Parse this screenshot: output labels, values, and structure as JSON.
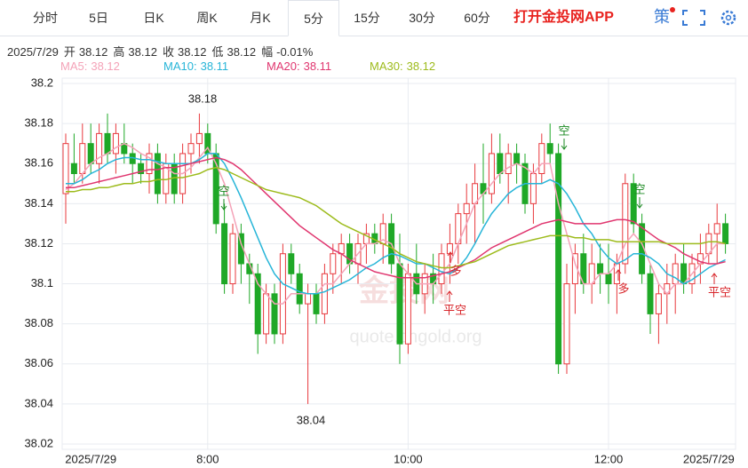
{
  "tabs": [
    "分时",
    "5日",
    "日K",
    "周K",
    "月K",
    "5分",
    "15分",
    "30分",
    "60分"
  ],
  "app_link": "打开金投网APP",
  "toolbar_icon": "策",
  "info": {
    "date": "2025/7/29",
    "items": [
      {
        "label": "开",
        "value": "38.12"
      },
      {
        "label": "高",
        "value": "38.12"
      },
      {
        "label": "收",
        "value": "38.12"
      },
      {
        "label": "低",
        "value": "38.12"
      },
      {
        "label": "幅",
        "value": "-0.01%"
      }
    ]
  },
  "watermark": [
    "金投网",
    "quote.cngold.org"
  ],
  "chart_data": {
    "type": "candlestick",
    "categories": [
      null,
      null,
      null,
      "2025/7/29",
      null,
      null,
      null,
      null,
      null,
      null,
      null,
      null,
      null,
      null,
      null,
      null,
      null,
      "8:00",
      null,
      null,
      null,
      null,
      null,
      null,
      null,
      null,
      null,
      null,
      null,
      null,
      null,
      null,
      null,
      null,
      null,
      null,
      null,
      null,
      null,
      null,
      null,
      "10:00",
      null,
      null,
      null,
      null,
      null,
      null,
      null,
      null,
      null,
      null,
      null,
      null,
      null,
      null,
      null,
      null,
      null,
      null,
      null,
      null,
      null,
      null,
      null,
      "12:00",
      null,
      null,
      null,
      null,
      null,
      null,
      null,
      null,
      null,
      null,
      null,
      "2025/7/29",
      null,
      null
    ],
    "open": [
      38.145,
      38.16,
      38.155,
      38.17,
      38.16,
      38.175,
      38.165,
      38.17,
      38.165,
      38.16,
      38.155,
      38.165,
      38.145,
      38.16,
      38.145,
      38.165,
      38.17,
      38.175,
      38.165,
      38.13,
      38.1,
      38.125,
      38.11,
      38.105,
      38.075,
      38.095,
      38.075,
      38.115,
      38.105,
      38.09,
      38.095,
      38.085,
      38.105,
      38.115,
      38.12,
      38.11,
      38.12,
      38.125,
      38.12,
      38.13,
      38.11,
      38.07,
      38.105,
      38.095,
      38.105,
      38.1,
      38.115,
      38.12,
      38.135,
      38.14,
      38.15,
      38.145,
      38.165,
      38.155,
      38.165,
      38.16,
      38.14,
      38.155,
      38.17,
      38.165,
      38.06,
      38.1,
      38.115,
      38.1,
      38.11,
      38.105,
      38.1,
      38.11,
      38.15,
      38.13,
      38.105,
      38.085,
      38.095,
      38.1,
      38.11,
      38.1,
      38.11,
      38.115,
      38.125,
      38.13
    ],
    "high": [
      38.175,
      38.175,
      38.18,
      38.18,
      38.18,
      38.185,
      38.18,
      38.18,
      38.17,
      38.165,
      38.17,
      38.17,
      38.165,
      38.165,
      38.17,
      38.175,
      38.185,
      38.18,
      38.17,
      38.14,
      38.13,
      38.13,
      38.115,
      38.11,
      38.1,
      38.1,
      38.12,
      38.12,
      38.11,
      38.1,
      38.1,
      38.11,
      38.12,
      38.125,
      38.125,
      38.125,
      38.13,
      38.13,
      38.135,
      38.135,
      38.125,
      38.11,
      38.12,
      38.11,
      38.115,
      38.12,
      38.13,
      38.14,
      38.15,
      38.16,
      38.17,
      38.175,
      38.175,
      38.17,
      38.17,
      38.165,
      38.16,
      38.175,
      38.18,
      38.17,
      38.11,
      38.12,
      38.125,
      38.12,
      38.12,
      38.12,
      38.115,
      38.155,
      38.155,
      38.135,
      38.11,
      38.1,
      38.11,
      38.115,
      38.12,
      38.115,
      38.125,
      38.13,
      38.14,
      38.135
    ],
    "low": [
      38.13,
      38.15,
      38.15,
      38.155,
      38.15,
      38.16,
      38.155,
      38.16,
      38.15,
      38.15,
      38.145,
      38.14,
      38.14,
      38.14,
      38.14,
      38.155,
      38.16,
      38.16,
      38.125,
      38.095,
      38.095,
      38.1,
      38.09,
      38.065,
      38.07,
      38.07,
      38.07,
      38.1,
      38.085,
      38.04,
      38.08,
      38.08,
      38.095,
      38.1,
      38.105,
      38.1,
      38.11,
      38.115,
      38.11,
      38.105,
      38.06,
      38.065,
      38.09,
      38.085,
      38.09,
      38.095,
      38.1,
      38.11,
      38.12,
      38.12,
      38.13,
      38.14,
      38.15,
      38.14,
      38.15,
      38.135,
      38.13,
      38.15,
      38.16,
      38.055,
      38.055,
      38.085,
      38.095,
      38.09,
      38.095,
      38.09,
      38.085,
      38.105,
      38.125,
      38.1,
      38.075,
      38.07,
      38.08,
      38.085,
      38.095,
      38.095,
      38.1,
      38.11,
      38.11,
      38.115
    ],
    "close": [
      38.17,
      38.155,
      38.17,
      38.16,
      38.175,
      38.165,
      38.175,
      38.165,
      38.16,
      38.155,
      38.165,
      38.145,
      38.16,
      38.145,
      38.165,
      38.17,
      38.175,
      38.165,
      38.13,
      38.1,
      38.125,
      38.11,
      38.105,
      38.075,
      38.095,
      38.075,
      38.115,
      38.105,
      38.09,
      38.095,
      38.085,
      38.105,
      38.115,
      38.12,
      38.11,
      38.12,
      38.125,
      38.12,
      38.13,
      38.11,
      38.07,
      38.105,
      38.095,
      38.105,
      38.1,
      38.115,
      38.12,
      38.135,
      38.14,
      38.15,
      38.145,
      38.165,
      38.155,
      38.165,
      38.16,
      38.14,
      38.155,
      38.17,
      38.165,
      38.06,
      38.1,
      38.115,
      38.1,
      38.11,
      38.105,
      38.1,
      38.11,
      38.15,
      38.13,
      38.105,
      38.085,
      38.095,
      38.1,
      38.11,
      38.1,
      38.11,
      38.115,
      38.125,
      38.13,
      38.12
    ],
    "up_color": "#e8383d",
    "down_color": "#1fa827",
    "series": [
      {
        "name": "MA5",
        "legend_value": "38.12",
        "color": "#f4a3b8",
        "values": [
          38.147,
          38.15,
          38.155,
          38.16,
          38.163,
          38.165,
          38.168,
          38.17,
          38.168,
          38.165,
          38.163,
          38.16,
          38.158,
          38.155,
          38.155,
          38.158,
          38.163,
          38.168,
          38.16,
          38.15,
          38.135,
          38.12,
          38.11,
          38.1,
          38.095,
          38.09,
          38.09,
          38.095,
          38.095,
          38.095,
          38.095,
          38.1,
          38.1,
          38.105,
          38.11,
          38.115,
          38.12,
          38.12,
          38.122,
          38.12,
          38.11,
          38.105,
          38.1,
          38.1,
          38.1,
          38.105,
          38.11,
          38.12,
          38.13,
          38.14,
          38.145,
          38.15,
          38.155,
          38.158,
          38.16,
          38.158,
          38.155,
          38.16,
          38.16,
          38.14,
          38.125,
          38.11,
          38.1,
          38.1,
          38.105,
          38.105,
          38.11,
          38.12,
          38.125,
          38.12,
          38.11,
          38.1,
          38.095,
          38.1,
          38.1,
          38.105,
          38.11,
          38.115,
          38.12,
          38.12
        ]
      },
      {
        "name": "MA10",
        "legend_value": "38.11",
        "color": "#27b5d8",
        "values": [
          38.15,
          38.15,
          38.152,
          38.155,
          38.157,
          38.16,
          38.162,
          38.163,
          38.163,
          38.162,
          38.162,
          38.161,
          38.16,
          38.16,
          38.16,
          38.16,
          38.162,
          38.165,
          38.165,
          38.16,
          38.152,
          38.143,
          38.133,
          38.123,
          38.113,
          38.105,
          38.1,
          38.098,
          38.096,
          38.095,
          38.095,
          38.096,
          38.098,
          38.1,
          38.102,
          38.105,
          38.108,
          38.11,
          38.113,
          38.115,
          38.114,
          38.112,
          38.11,
          38.11,
          38.108,
          38.106,
          38.105,
          38.108,
          38.113,
          38.12,
          38.128,
          38.135,
          38.14,
          38.145,
          38.148,
          38.15,
          38.15,
          38.15,
          38.152,
          38.15,
          38.145,
          38.138,
          38.13,
          38.125,
          38.118,
          38.113,
          38.11,
          38.112,
          38.115,
          38.115,
          38.113,
          38.11,
          38.105,
          38.103,
          38.1,
          38.102,
          38.105,
          38.108,
          38.11,
          38.112
        ]
      },
      {
        "name": "MA20",
        "legend_value": "38.11",
        "color": "#e0366f",
        "values": [
          38.148,
          38.148,
          38.149,
          38.15,
          38.151,
          38.152,
          38.153,
          38.154,
          38.155,
          38.156,
          38.157,
          38.157,
          38.158,
          38.158,
          38.159,
          38.16,
          38.161,
          38.162,
          38.163,
          38.162,
          38.16,
          38.157,
          38.153,
          38.149,
          38.145,
          38.141,
          38.137,
          38.133,
          38.129,
          38.126,
          38.123,
          38.12,
          38.117,
          38.115,
          38.112,
          38.11,
          38.108,
          38.106,
          38.105,
          38.104,
          38.103,
          38.103,
          38.103,
          38.103,
          38.104,
          38.105,
          38.106,
          38.108,
          38.11,
          38.112,
          38.115,
          38.118,
          38.12,
          38.122,
          38.124,
          38.126,
          38.128,
          38.13,
          38.131,
          38.132,
          38.131,
          38.13,
          38.13,
          38.13,
          38.13,
          38.131,
          38.132,
          38.132,
          38.131,
          38.128,
          38.125,
          38.122,
          38.12,
          38.118,
          38.115,
          38.113,
          38.111,
          38.11,
          38.11,
          38.111
        ]
      },
      {
        "name": "MA30",
        "legend_value": "38.12",
        "color": "#9dbb1c",
        "values": [
          38.146,
          38.146,
          38.147,
          38.147,
          38.148,
          38.148,
          38.149,
          38.15,
          38.15,
          38.151,
          38.151,
          38.152,
          38.152,
          38.153,
          38.153,
          38.154,
          38.155,
          38.157,
          38.158,
          38.157,
          38.155,
          38.153,
          38.151,
          38.149,
          38.147,
          38.146,
          38.145,
          38.144,
          38.143,
          38.141,
          38.139,
          38.136,
          38.133,
          38.13,
          38.128,
          38.126,
          38.124,
          38.122,
          38.12,
          38.118,
          38.115,
          38.113,
          38.111,
          38.11,
          38.109,
          38.108,
          38.108,
          38.109,
          38.11,
          38.111,
          38.113,
          38.115,
          38.117,
          38.119,
          38.12,
          38.121,
          38.122,
          38.123,
          38.124,
          38.124,
          38.124,
          38.123,
          38.123,
          38.122,
          38.122,
          38.122,
          38.121,
          38.121,
          38.121,
          38.121,
          38.121,
          38.121,
          38.12,
          38.12,
          38.12,
          38.12,
          38.12,
          38.121,
          38.121,
          38.12
        ]
      }
    ],
    "ylim": [
      38.02,
      38.2
    ],
    "yticks": [
      38.02,
      38.04,
      38.06,
      38.08,
      38.1,
      38.12,
      38.14,
      38.16,
      38.18,
      38.2
    ],
    "grid": true,
    "annotations": [
      "38.18",
      "38.04",
      "空",
      "空",
      "多",
      "平空",
      "多",
      "空",
      "平空"
    ]
  }
}
